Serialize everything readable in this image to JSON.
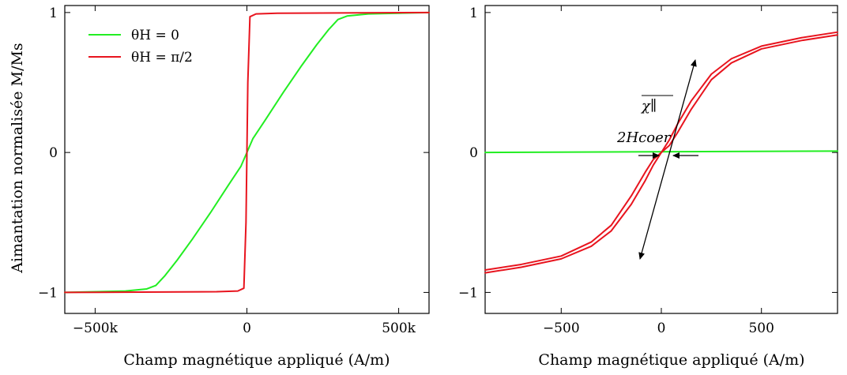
{
  "chart_data": [
    {
      "type": "line",
      "title": "",
      "xlabel": "Champ magnétique appliqué (A/m)",
      "ylabel": "Aimantation normalisée M/Ms",
      "xlim": [
        -600000,
        600000
      ],
      "ylim": [
        -1.15,
        1.05
      ],
      "xticks": [
        -500000,
        0,
        500000
      ],
      "xtick_labels": [
        "−500k",
        "0",
        "500k"
      ],
      "yticks": [
        -1,
        0,
        1
      ],
      "ytick_labels": [
        "−1",
        "0",
        "1"
      ],
      "legend": {
        "position": "top-left",
        "entries": [
          "θH = 0",
          "θH = π/2"
        ]
      },
      "series": [
        {
          "name": "θH = 0",
          "color": "#22ee22",
          "x": [
            -600000,
            -400000,
            -330000,
            -300000,
            -270000,
            -230000,
            -180000,
            -120000,
            -60000,
            -20000,
            0,
            20000,
            60000,
            120000,
            180000,
            230000,
            270000,
            300000,
            330000,
            400000,
            600000
          ],
          "y": [
            -1.0,
            -0.99,
            -0.975,
            -0.95,
            -0.88,
            -0.77,
            -0.62,
            -0.43,
            -0.23,
            -0.1,
            0.0,
            0.1,
            0.23,
            0.43,
            0.62,
            0.77,
            0.88,
            0.95,
            0.975,
            0.99,
            1.0
          ]
        },
        {
          "name": "θH = π/2",
          "color": "#e8141e",
          "x": [
            -600000,
            -100000,
            -30000,
            -10000,
            -3000,
            0,
            3000,
            10000,
            30000,
            100000,
            600000
          ],
          "y": [
            -1.0,
            -0.995,
            -0.99,
            -0.97,
            -0.5,
            0.0,
            0.5,
            0.97,
            0.99,
            0.995,
            1.0
          ]
        }
      ]
    },
    {
      "type": "line",
      "title": "",
      "xlabel": "Champ magnétique appliqué (A/m)",
      "ylabel": "",
      "xlim": [
        -880,
        880
      ],
      "ylim": [
        -1.15,
        1.05
      ],
      "xticks": [
        -500,
        0,
        500
      ],
      "xtick_labels": [
        "−500",
        "0",
        "500"
      ],
      "yticks": [
        -1,
        0,
        1
      ],
      "ytick_labels": [
        "−1",
        "0",
        "1"
      ],
      "annotations": [
        "2Hcoer",
        "χ∥"
      ],
      "series": [
        {
          "color": "#22ee22",
          "x": [
            -880,
            880
          ],
          "y": [
            0.0,
            0.01
          ]
        },
        {
          "color": "#e8141e",
          "x": [
            -880,
            -700,
            -500,
            -350,
            -250,
            -150,
            -80,
            -40,
            0,
            40,
            80,
            150,
            250,
            350,
            500,
            700,
            880
          ],
          "y": [
            -0.86,
            -0.82,
            -0.76,
            -0.67,
            -0.56,
            -0.37,
            -0.2,
            -0.09,
            0.0,
            0.09,
            0.2,
            0.37,
            0.56,
            0.67,
            0.76,
            0.82,
            0.86
          ]
        },
        {
          "color": "#e8141e",
          "x": [
            -880,
            -700,
            -500,
            -350,
            -250,
            -150,
            -80,
            -40,
            0,
            40,
            80,
            150,
            250,
            350,
            500,
            700,
            880
          ],
          "y": [
            -0.84,
            -0.8,
            -0.74,
            -0.64,
            -0.52,
            -0.31,
            -0.14,
            -0.05,
            0.0,
            0.05,
            0.14,
            0.31,
            0.52,
            0.64,
            0.74,
            0.8,
            0.84
          ]
        }
      ]
    }
  ]
}
